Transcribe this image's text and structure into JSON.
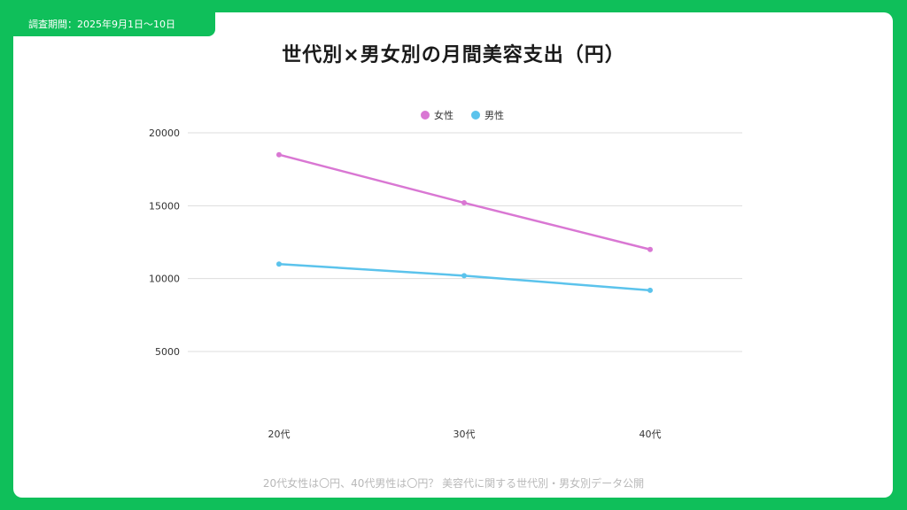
{
  "header_tab": {
    "text": "調査期間：2025年9月1日〜10日"
  },
  "title": "世代別×男女別の月間美容支出（円）",
  "footer": "20代女性は〇円、40代男性は〇円？ 美容代に関する世代別・男女別データ公開",
  "colors": {
    "frame": "#0fbf5a",
    "female": "#d977d3",
    "male": "#5bc3ec",
    "grid": "#dddddd"
  },
  "chart_data": {
    "type": "line",
    "title": "世代別×男女別の月間美容支出（円）",
    "categories": [
      "20代",
      "30代",
      "40代"
    ],
    "series": [
      {
        "name": "女性",
        "values": [
          18500,
          15200,
          12000
        ]
      },
      {
        "name": "男性",
        "values": [
          11000,
          10200,
          9200
        ]
      }
    ],
    "yticks": [
      "20000",
      "15000",
      "10000",
      "5000"
    ],
    "ytick_values": [
      20000,
      15000,
      10000,
      5000
    ],
    "ylim": [
      2000,
      20000
    ],
    "grid": true,
    "legend": "top-center"
  }
}
